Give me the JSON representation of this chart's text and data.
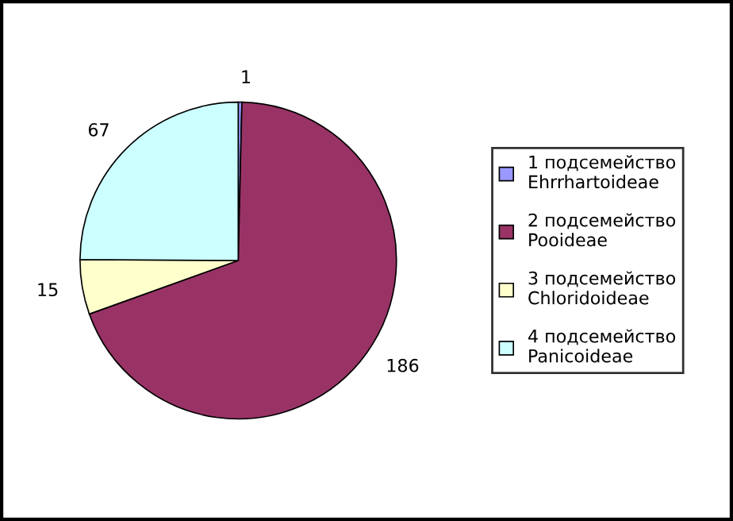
{
  "chart_data": {
    "type": "pie",
    "categories": [
      "1 подсемейство\nEhrrhartoideae",
      "2 подсемейство\nPooideae",
      "3 подсемейство\nChloridoideae",
      "4 подсемейство\nPanicoideae"
    ],
    "values": [
      1,
      186,
      15,
      67
    ],
    "colors": [
      "#9999ff",
      "#993366",
      "#ffffcc",
      "#ccffff"
    ],
    "data_labels": true,
    "legend": "right"
  }
}
